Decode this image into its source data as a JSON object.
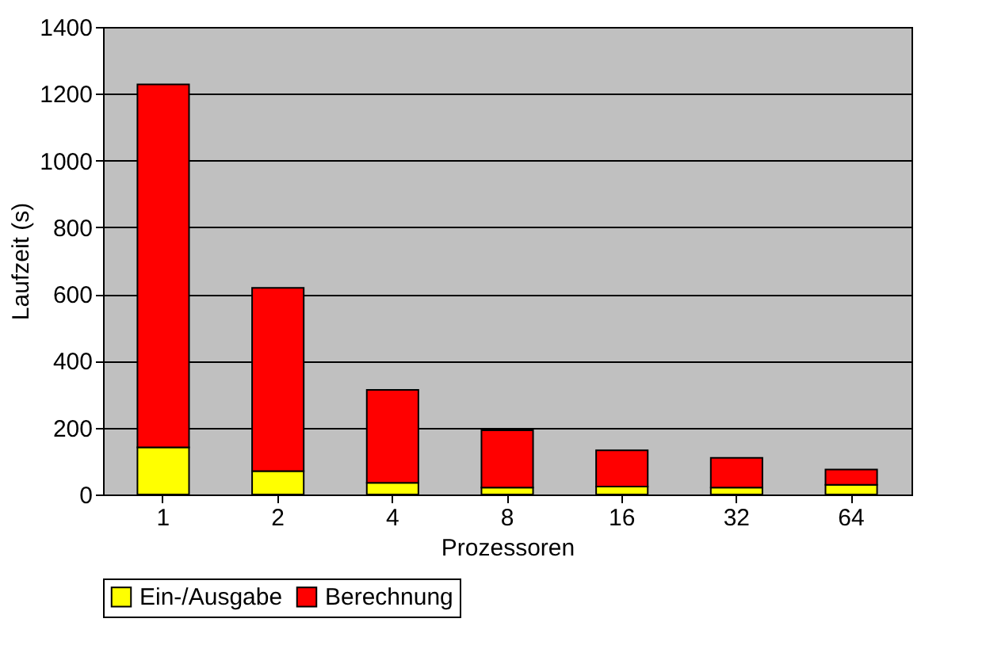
{
  "chart_data": {
    "type": "bar",
    "stacked": true,
    "xlabel": "Prozessoren",
    "ylabel": "Laufzeit (s)",
    "categories": [
      "1",
      "2",
      "4",
      "8",
      "16",
      "32",
      "64"
    ],
    "series": [
      {
        "name": "Ein-/Ausgabe",
        "color": "#ffff00",
        "values": [
          141,
          70,
          35,
          21,
          24,
          21,
          29
        ]
      },
      {
        "name": "Berechnung",
        "color": "#ff0000",
        "values": [
          1087,
          549,
          278,
          171,
          108,
          89,
          46
        ]
      }
    ],
    "ylim": [
      0,
      1400
    ],
    "yticks": [
      0,
      200,
      400,
      600,
      800,
      1000,
      1200,
      1400
    ],
    "grid": "y",
    "legend": "bottom"
  }
}
